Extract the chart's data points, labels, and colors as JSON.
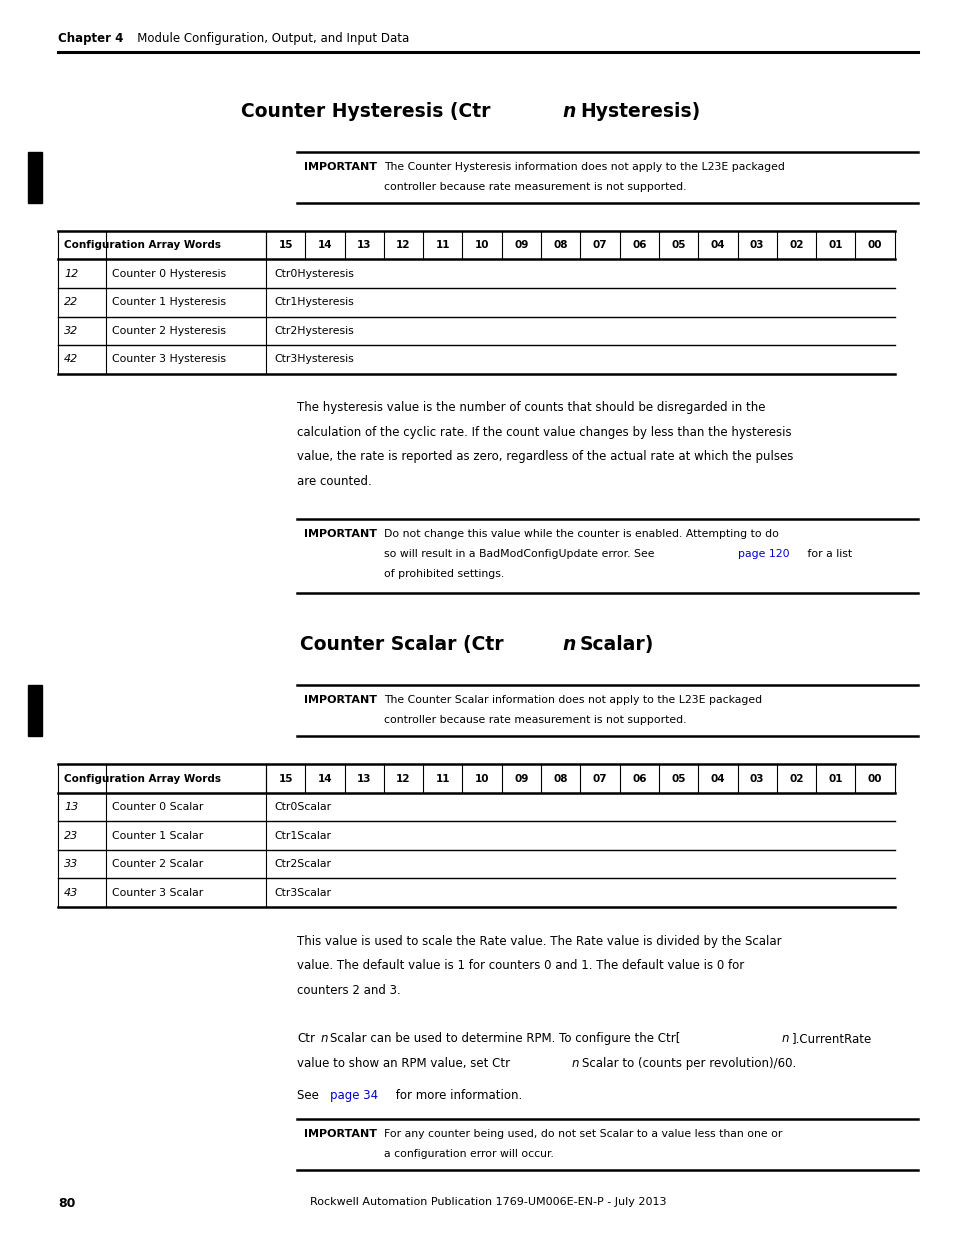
{
  "page_width": 9.54,
  "page_height": 12.35,
  "bg_color": "#ffffff",
  "chapter_label": "Chapter 4",
  "chapter_text": "   Module Configuration, Output, and Input Data",
  "important_label": "IMPORTANT",
  "important1_text_line1": "The Counter Hysteresis information does not apply to the L23E packaged",
  "important1_text_line2": "controller because rate measurement is not supported.",
  "important2_text_line1": "Do not change this value while the counter is enabled. Attempting to do",
  "important2_text_line2": "so will result in a BadModConfigUpdate error. See page 120 for a list",
  "important2_text_line3": "of prohibited settings.",
  "important3_text_line1": "The Counter Scalar information does not apply to the L23E packaged",
  "important3_text_line2": "controller because rate measurement is not supported.",
  "important4_text_line1": "For any counter being used, do not set Scalar to a value less than one or",
  "important4_text_line2": "a configuration error will occur.",
  "table1_header": [
    "Configuration Array Words",
    "15",
    "14",
    "13",
    "12",
    "11",
    "10",
    "09",
    "08",
    "07",
    "06",
    "05",
    "04",
    "03",
    "02",
    "01",
    "00"
  ],
  "table1_rows": [
    [
      "12",
      "Counter 0 Hysteresis",
      "Ctr0Hysteresis"
    ],
    [
      "22",
      "Counter 1 Hysteresis",
      "Ctr1Hysteresis"
    ],
    [
      "32",
      "Counter 2 Hysteresis",
      "Ctr2Hysteresis"
    ],
    [
      "42",
      "Counter 3 Hysteresis",
      "Ctr3Hysteresis"
    ]
  ],
  "table2_header": [
    "Configuration Array Words",
    "15",
    "14",
    "13",
    "12",
    "11",
    "10",
    "09",
    "08",
    "07",
    "06",
    "05",
    "04",
    "03",
    "02",
    "01",
    "00"
  ],
  "table2_rows": [
    [
      "13",
      "Counter 0 Scalar",
      "Ctr0Scalar"
    ],
    [
      "23",
      "Counter 1 Scalar",
      "Ctr1Scalar"
    ],
    [
      "33",
      "Counter 2 Scalar",
      "Ctr2Scalar"
    ],
    [
      "43",
      "Counter 3 Scalar",
      "Ctr3Scalar"
    ]
  ],
  "hysteresis_body_lines": [
    "The hysteresis value is the number of counts that should be disregarded in the",
    "calculation of the cyclic rate. If the count value changes by less than the hysteresis",
    "value, the rate is reported as zero, regardless of the actual rate at which the pulses",
    "are counted."
  ],
  "scalar_body1_lines": [
    "This value is used to scale the Rate value. The Rate value is divided by the Scalar",
    "value. The default value is 1 for counters 0 and 1. The default value is 0 for",
    "counters 2 and 3."
  ],
  "footer_text": "Rockwell Automation Publication 1769-UM006E-EN-P - July 2013",
  "footer_page": "80",
  "link_color": "#0000cc",
  "text_color": "#000000"
}
